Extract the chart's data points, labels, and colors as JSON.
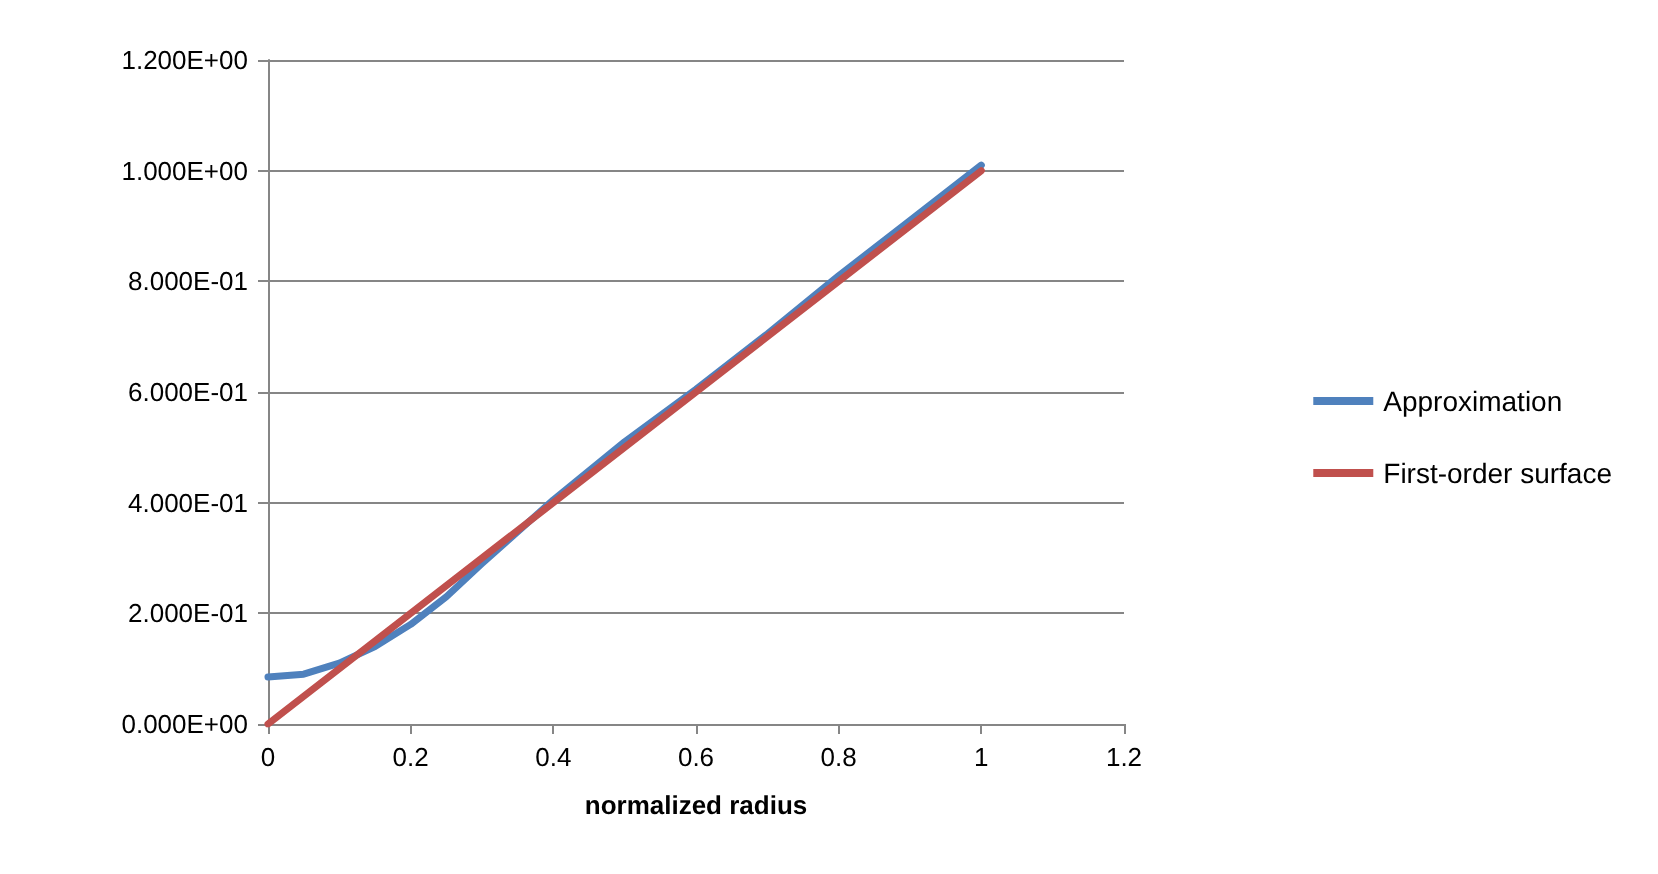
{
  "chart_data": {
    "type": "line",
    "xlabel": "normalized radius",
    "xlim": [
      0,
      1.2
    ],
    "xticks": [
      0,
      0.2,
      0.4,
      0.6,
      0.8,
      1,
      1.2
    ],
    "ylim": [
      0,
      1.2
    ],
    "yticks": [
      {
        "value": 0,
        "label": "0.000E+00"
      },
      {
        "value": 0.2,
        "label": "2.000E-01"
      },
      {
        "value": 0.4,
        "label": "4.000E-01"
      },
      {
        "value": 0.6,
        "label": "6.000E-01"
      },
      {
        "value": 0.8,
        "label": "8.000E-01"
      },
      {
        "value": 1,
        "label": "1.000E+00"
      },
      {
        "value": 1.2,
        "label": "1.200E+00"
      }
    ],
    "grid": "y",
    "legend": "right",
    "marker": "none",
    "line_style": "solid",
    "series": [
      {
        "name": "Approximation",
        "color": "#4f81bd",
        "x": [
          0,
          0.05,
          0.1,
          0.15,
          0.2,
          0.25,
          0.3,
          0.4,
          0.5,
          0.6,
          0.7,
          0.8,
          0.9,
          1
        ],
        "values": [
          0.085,
          0.09,
          0.11,
          0.14,
          0.18,
          0.23,
          0.29,
          0.405,
          0.51,
          0.605,
          0.705,
          0.81,
          0.91,
          1.01
        ]
      },
      {
        "name": "First-order surface",
        "color": "#c0504d",
        "x": [
          0,
          1
        ],
        "values": [
          0,
          1
        ]
      }
    ]
  }
}
